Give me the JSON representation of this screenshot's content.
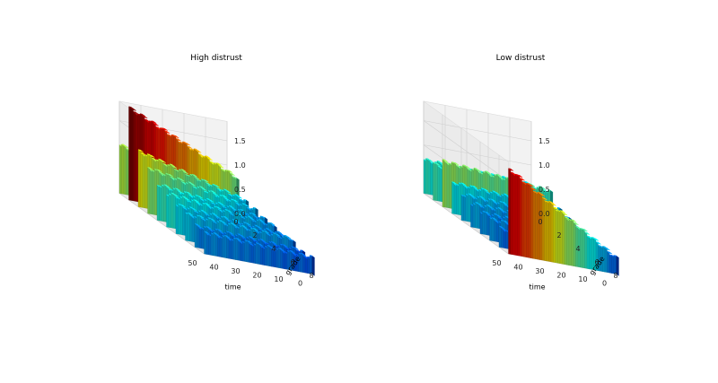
{
  "chart_data": [
    {
      "type": "bar3d",
      "title": "High distrust",
      "xlabel": "time",
      "ylabel": "grade",
      "zlabel": "",
      "x_ticks": [
        0,
        10,
        20,
        30,
        40,
        50
      ],
      "y_ticks": [
        0,
        2,
        4,
        6,
        8
      ],
      "z_ticks": [
        "0.0",
        "0.5",
        "1.0",
        "1.5"
      ],
      "xlim": [
        0,
        50
      ],
      "ylim": [
        0,
        9
      ],
      "zlim": [
        0,
        1.9
      ],
      "grid": true,
      "colormap": "jet",
      "series": [
        {
          "grade": 0,
          "start": 1.0,
          "end": 0.55
        },
        {
          "grade": 1,
          "start": 1.9,
          "end": 0.9
        },
        {
          "grade": 2,
          "start": 1.15,
          "end": 0.55
        },
        {
          "grade": 3,
          "start": 0.95,
          "end": 0.5
        },
        {
          "grade": 4,
          "start": 0.75,
          "end": 0.45
        },
        {
          "grade": 5,
          "start": 0.7,
          "end": 0.45
        },
        {
          "grade": 6,
          "start": 0.6,
          "end": 0.4
        },
        {
          "grade": 7,
          "start": 0.55,
          "end": 0.45
        },
        {
          "grade": 8,
          "start": 0.45,
          "end": 0.35
        },
        {
          "grade": 9,
          "start": 0.45,
          "end": 0.35
        }
      ]
    },
    {
      "type": "bar3d",
      "title": "Low distrust",
      "xlabel": "time",
      "ylabel": "grade",
      "zlabel": "",
      "x_ticks": [
        0,
        10,
        20,
        30,
        40,
        50
      ],
      "y_ticks": [
        0,
        2,
        4,
        6,
        8
      ],
      "z_ticks": [
        "0.0",
        "0.5",
        "1.0",
        "1.5"
      ],
      "xlim": [
        0,
        50
      ],
      "ylim": [
        0,
        9
      ],
      "zlim": [
        0,
        1.9
      ],
      "grid": true,
      "colormap": "jet",
      "series": [
        {
          "grade": 0,
          "start": 0.7,
          "end": 0.6
        },
        {
          "grade": 1,
          "start": 0.75,
          "end": 0.5
        },
        {
          "grade": 2,
          "start": 0.95,
          "end": 0.75
        },
        {
          "grade": 3,
          "start": 0.65,
          "end": 0.5
        },
        {
          "grade": 4,
          "start": 0.55,
          "end": 0.45
        },
        {
          "grade": 5,
          "start": 0.5,
          "end": 0.4
        },
        {
          "grade": 6,
          "start": 0.45,
          "end": 0.35
        },
        {
          "grade": 7,
          "start": 0.45,
          "end": 0.35
        },
        {
          "grade": 8,
          "start": 0.4,
          "end": 0.3
        },
        {
          "grade": 9,
          "start": 1.75,
          "end": 0.35
        }
      ]
    }
  ]
}
